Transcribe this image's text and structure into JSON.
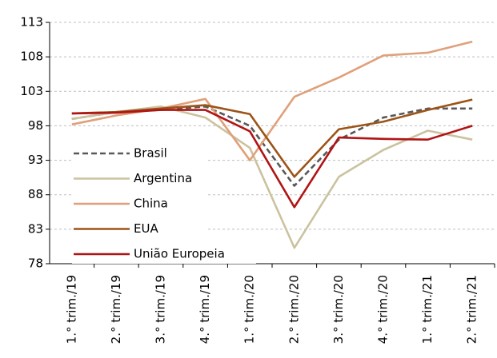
{
  "chart_data": {
    "type": "line",
    "categories": [
      "1.° trim./19",
      "2.° trim./19",
      "3.° trim./19",
      "4.° trim./19",
      "1.° trim./20",
      "2.° trim./20",
      "3.° trim./20",
      "4.° trim./20",
      "1.° trim./21",
      "2.° trim./21"
    ],
    "series": [
      {
        "name": "Brasil",
        "color": "#595959",
        "dashed": true,
        "values": [
          99.0,
          100.0,
          100.3,
          100.8,
          98.0,
          89.3,
          96.0,
          99.2,
          100.5,
          100.5
        ]
      },
      {
        "name": "Argentina",
        "color": "#cbc29f",
        "values": [
          99.0,
          100.0,
          100.8,
          99.2,
          94.8,
          80.3,
          90.6,
          94.5,
          97.3,
          96.0
        ]
      },
      {
        "name": "China",
        "color": "#e0a07a",
        "values": [
          98.2,
          99.5,
          100.5,
          101.9,
          93.0,
          102.2,
          105.0,
          108.2,
          108.6,
          110.2
        ]
      },
      {
        "name": "EUA",
        "color": "#9c5418",
        "values": [
          99.8,
          100.0,
          100.5,
          101.0,
          99.7,
          90.6,
          97.5,
          98.6,
          100.3,
          101.8
        ]
      },
      {
        "name": "União Europeia",
        "color": "#b01515",
        "values": [
          99.8,
          99.9,
          100.3,
          100.3,
          97.2,
          86.2,
          96.3,
          96.1,
          96.0,
          98.0
        ]
      }
    ],
    "ylim": [
      78,
      113
    ],
    "yticks": [
      78,
      83,
      88,
      93,
      98,
      103,
      108,
      113
    ],
    "grid": true
  }
}
